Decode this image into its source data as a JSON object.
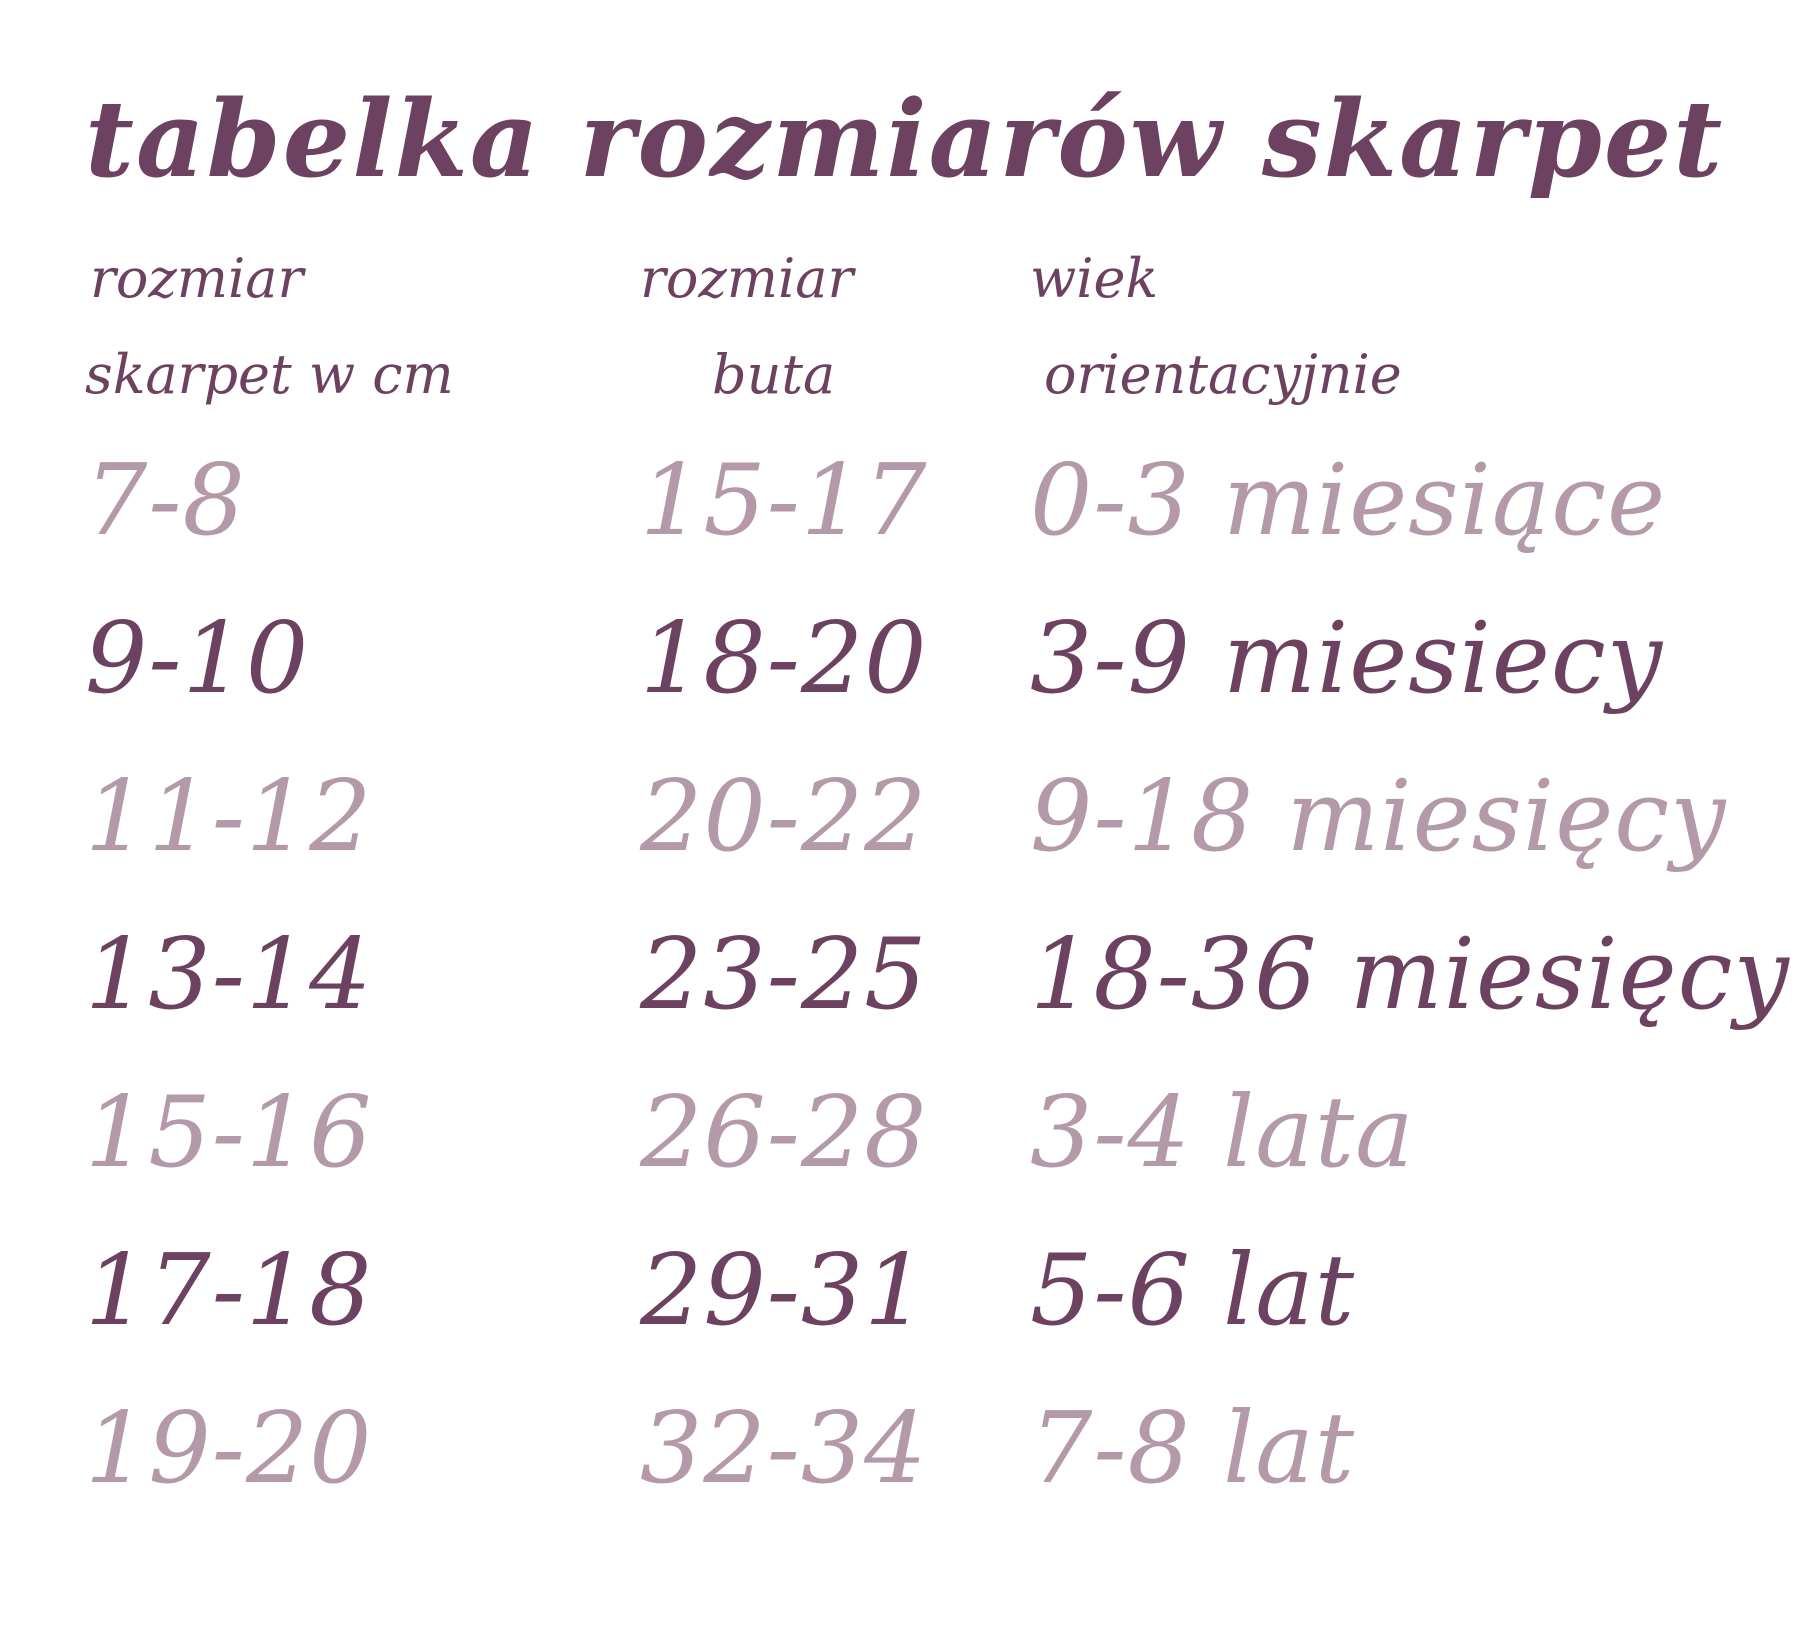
{
  "title": "tabelka rozmiarów skarpet",
  "colors": {
    "dark_plum": "#6d4160",
    "light_mauve": "#b49aa9",
    "background": "#ffffff"
  },
  "table": {
    "columns": [
      {
        "line1": "rozmiar",
        "line2": "skarpet w cm"
      },
      {
        "line1": "rozmiar",
        "line2": "buta"
      },
      {
        "line1": "wiek",
        "line2": "orientacyjnie"
      }
    ],
    "rows": [
      {
        "sock_cm": "7-8",
        "shoe": "15-17",
        "age": "0-3 miesiące",
        "tone": "light"
      },
      {
        "sock_cm": "9-10",
        "shoe": "18-20",
        "age": "3-9 miesiecy",
        "tone": "dark"
      },
      {
        "sock_cm": "11-12",
        "shoe": "20-22",
        "age": "9-18 miesięcy",
        "tone": "light"
      },
      {
        "sock_cm": "13-14",
        "shoe": "23-25",
        "age": "18-36 miesięcy",
        "tone": "dark"
      },
      {
        "sock_cm": "15-16",
        "shoe": "26-28",
        "age": "3-4 lata",
        "tone": "light"
      },
      {
        "sock_cm": "17-18",
        "shoe": "29-31",
        "age": "5-6 lat",
        "tone": "dark"
      },
      {
        "sock_cm": "19-20",
        "shoe": "32-34",
        "age": "7-8 lat",
        "tone": "light"
      }
    ]
  }
}
